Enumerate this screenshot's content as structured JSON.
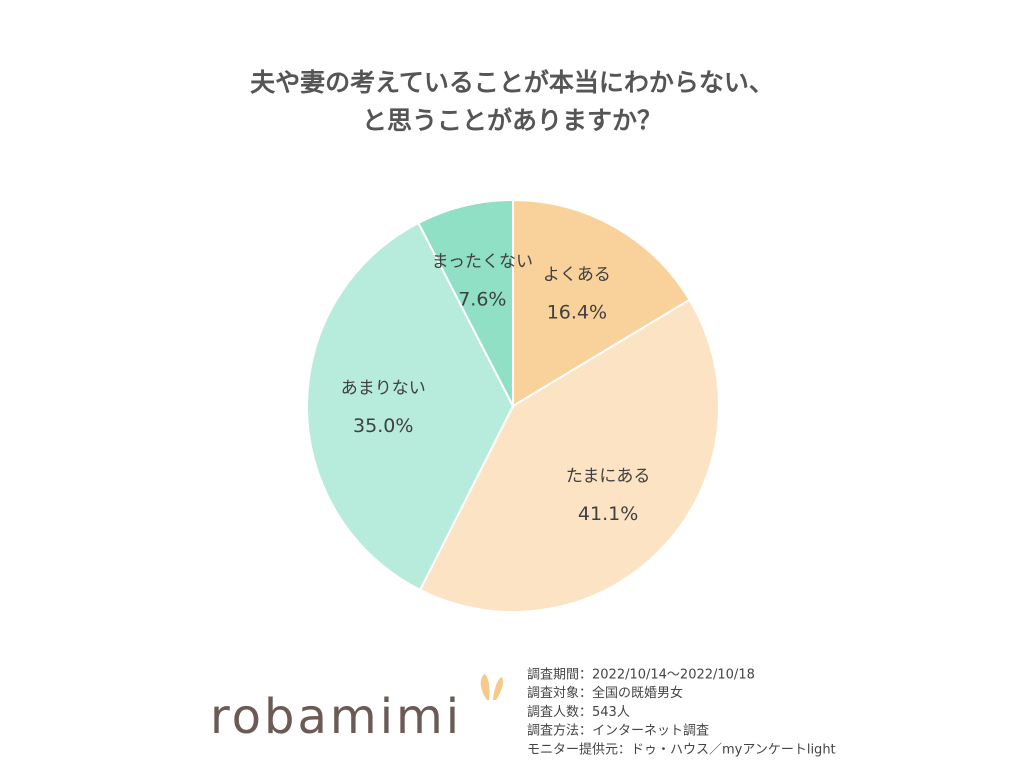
{
  "chart_data": {
    "type": "pie",
    "title": [
      "夫や妻の考えていることが本当にわからない、",
      "と思うことがありますか？"
    ],
    "categories": [
      "よくある",
      "たまにある",
      "あまりない",
      "まったくない"
    ],
    "values": [
      16.4,
      41.1,
      35.0,
      7.6
    ],
    "value_labels": [
      "16.4%",
      "41.1%",
      "35.0%",
      "7.6%"
    ],
    "colors": [
      "#f9d29b",
      "#fbe3c4",
      "#b7ebdb",
      "#8fe0c5"
    ]
  },
  "footer": {
    "logo": "robamimi",
    "notes": [
      "調査期間：2022/10/14～2022/10/18",
      "調査対象：全国の既婚男女",
      "調査人数：543人",
      "調査方法：インターネット調査",
      "モニター提供元：ドゥ・ハウス／myアンケートlight"
    ]
  }
}
